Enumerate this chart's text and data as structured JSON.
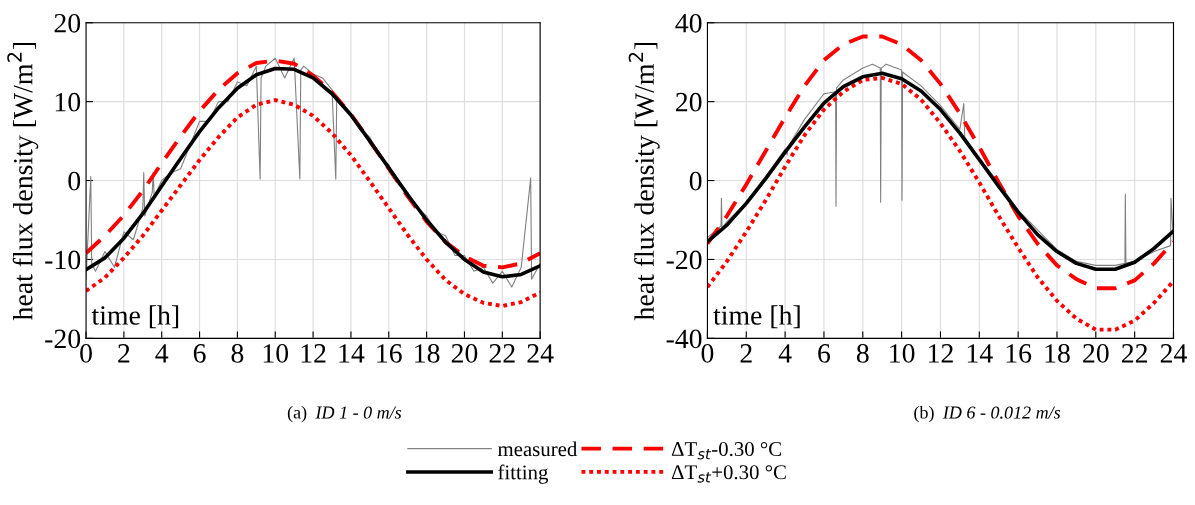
{
  "chart_data": [
    {
      "type": "line",
      "xlabel": "time [h]",
      "ylabel": "heat flux density [W/m$^{2}$]",
      "annotations": [
        "(a)",
        "ID 1 - 0 m/s"
      ],
      "xlim": [
        0,
        24
      ],
      "xticks": [
        0,
        2,
        4,
        6,
        8,
        10,
        12,
        14,
        16,
        18,
        20,
        22,
        24
      ],
      "ylim": [
        -20,
        20
      ],
      "yticks": [
        -20,
        -10,
        0,
        10,
        20
      ],
      "grid": true,
      "legend": "bottom",
      "x": [
        0,
        1,
        2,
        3,
        4,
        5,
        6,
        7,
        8,
        9,
        10,
        11,
        12,
        13,
        14,
        15,
        16,
        17,
        18,
        19,
        20,
        21,
        22,
        23,
        24
      ],
      "series": [
        {
          "name": "measured",
          "color": "#808080",
          "line_style": "solid",
          "x": [
            0,
            0.25,
            0.3,
            0.5,
            1,
            1.5,
            2,
            2.5,
            3,
            3.05,
            3.1,
            3.5,
            3.55,
            3.6,
            4,
            4.5,
            5,
            5.5,
            6,
            6.5,
            7,
            7.5,
            8,
            8.5,
            9,
            9.2,
            9.25,
            9.5,
            10,
            10.5,
            11,
            11.3,
            11.35,
            11.5,
            12,
            12.5,
            13,
            13.2,
            13.25,
            13.5,
            14,
            14.5,
            15,
            15.5,
            16,
            16.5,
            17,
            17.5,
            18,
            18.5,
            19,
            19.5,
            20,
            20.5,
            21,
            21.5,
            22,
            22.5,
            23,
            23.5,
            23.55,
            24
          ],
          "values": [
            -12.5,
            0.5,
            -10.5,
            -11.5,
            -9.0,
            -11.0,
            -6.5,
            -7.5,
            -3.5,
            1.0,
            -4.5,
            -1.5,
            1.0,
            -2.0,
            0.0,
            1.0,
            1.5,
            4.5,
            7.5,
            7.5,
            10.0,
            10.0,
            12.5,
            12.0,
            14.5,
            0.2,
            13.0,
            14.5,
            15.5,
            13.0,
            15.5,
            0.2,
            14.0,
            14.5,
            13.5,
            13.0,
            11.5,
            0.2,
            10.5,
            10.0,
            8.5,
            6.5,
            5.5,
            3.0,
            2.0,
            -0.5,
            -1.5,
            -3.5,
            -4.5,
            -6.5,
            -7.0,
            -9.5,
            -9.5,
            -11.5,
            -11.0,
            -13.0,
            -11.5,
            -13.5,
            -11.0,
            0.3,
            -12.5,
            -10.5
          ]
        },
        {
          "name": "fitting",
          "color": "#000000",
          "line_style": "solid",
          "values": [
            -11.3,
            -9.8,
            -7.3,
            -4.2,
            -0.7,
            2.8,
            6.2,
            9.2,
            11.7,
            13.4,
            14.2,
            14.1,
            13.0,
            11.0,
            8.3,
            5.0,
            1.6,
            -1.8,
            -5.0,
            -7.8,
            -10.0,
            -11.6,
            -12.2,
            -11.9,
            -10.8
          ]
        },
        {
          "name": "ΔT$_{st}$-0.30 °C",
          "color": "#ff0000",
          "line_style": "dashed",
          "values": [
            -9.2,
            -7.0,
            -4.4,
            -1.3,
            2.2,
            5.6,
            8.8,
            11.5,
            13.6,
            14.9,
            15.2,
            14.8,
            13.3,
            11.2,
            8.4,
            5.0,
            1.5,
            -2.0,
            -5.2,
            -7.8,
            -9.6,
            -10.8,
            -11.0,
            -10.5,
            -9.2
          ]
        },
        {
          "name": "ΔT$_{st}$+0.30 °C",
          "color": "#ff0000",
          "line_style": "dotted",
          "values": [
            -14.0,
            -12.3,
            -9.8,
            -7.0,
            -3.8,
            -0.6,
            2.6,
            5.5,
            8.0,
            9.6,
            10.2,
            9.6,
            8.2,
            6.0,
            3.2,
            -0.1,
            -3.5,
            -6.9,
            -10.0,
            -12.6,
            -14.4,
            -15.5,
            -15.9,
            -15.4,
            -14.2
          ]
        }
      ]
    },
    {
      "type": "line",
      "xlabel": "time [h]",
      "ylabel": "heat flux density [W/m$^{2}$]",
      "annotations": [
        "(b)",
        "ID 6 - 0.012 m/s"
      ],
      "xlim": [
        0,
        24
      ],
      "xticks": [
        0,
        2,
        4,
        6,
        8,
        10,
        12,
        14,
        16,
        18,
        20,
        22,
        24
      ],
      "ylim": [
        -40,
        40
      ],
      "yticks": [
        -40,
        -20,
        0,
        20,
        40
      ],
      "grid": true,
      "x": [
        0,
        1,
        2,
        3,
        4,
        5,
        6,
        7,
        8,
        9,
        10,
        11,
        12,
        13,
        14,
        15,
        16,
        17,
        18,
        19,
        20,
        21,
        22,
        23,
        24
      ],
      "series": [
        {
          "color": "#808080",
          "line_style": "solid",
          "x": [
            0,
            0.7,
            0.72,
            0.75,
            1,
            2,
            3,
            4,
            4.1,
            4.15,
            5,
            6,
            6.6,
            6.62,
            6.65,
            7,
            8,
            8.5,
            8.9,
            8.92,
            8.95,
            9.2,
            10,
            10.02,
            10.05,
            11,
            12,
            13,
            13.2,
            13.25,
            14,
            15,
            16,
            17,
            18,
            19,
            20,
            21,
            21.5,
            21.52,
            21.55,
            22,
            23,
            23.85,
            23.87,
            24
          ],
          "values": [
            -14.5,
            -11.5,
            -4.5,
            -12,
            -10.5,
            -5.5,
            1.0,
            8.0,
            6.5,
            8.5,
            15.5,
            22.0,
            22.5,
            -6.5,
            23.5,
            25.5,
            28.5,
            29.5,
            28.5,
            -5.5,
            28.5,
            29.5,
            28,
            -5,
            27.5,
            24,
            19,
            13,
            19.5,
            11,
            5.5,
            -0.5,
            -7.5,
            -12.5,
            -17.5,
            -20.5,
            -21.5,
            -21.5,
            -21,
            -3.5,
            -21,
            -20.5,
            -18.0,
            -16.5,
            -4.5,
            -15.5
          ]
        },
        {
          "color": "#000000",
          "line_style": "solid",
          "values": [
            -15.5,
            -11.3,
            -5.8,
            0.5,
            7.2,
            13.6,
            19.6,
            23.8,
            26.3,
            27.2,
            25.8,
            22.7,
            18.0,
            12.0,
            5.3,
            -1.5,
            -8.0,
            -13.7,
            -18.0,
            -21.0,
            -22.5,
            -22.5,
            -20.7,
            -17.2,
            -12.8
          ]
        },
        {
          "color": "#ff0000",
          "line_style": "dashed",
          "values": [
            -16,
            -9,
            -1,
            7.5,
            16,
            24,
            30.5,
            34.5,
            36.5,
            36.5,
            34.5,
            30.5,
            24.5,
            17,
            8.5,
            -0.5,
            -9,
            -16,
            -21.5,
            -25,
            -27.3,
            -27.3,
            -25.3,
            -21,
            -15.5
          ]
        },
        {
          "color": "#ff0000",
          "line_style": "dotted",
          "values": [
            -27,
            -20.5,
            -13,
            -5,
            3.5,
            11.5,
            18,
            22.5,
            25.5,
            26,
            24.5,
            20.5,
            14.5,
            7.5,
            -0.5,
            -9,
            -17,
            -24.5,
            -30.5,
            -35,
            -37.8,
            -37.8,
            -35.5,
            -31,
            -25.5
          ]
        }
      ]
    }
  ]
}
